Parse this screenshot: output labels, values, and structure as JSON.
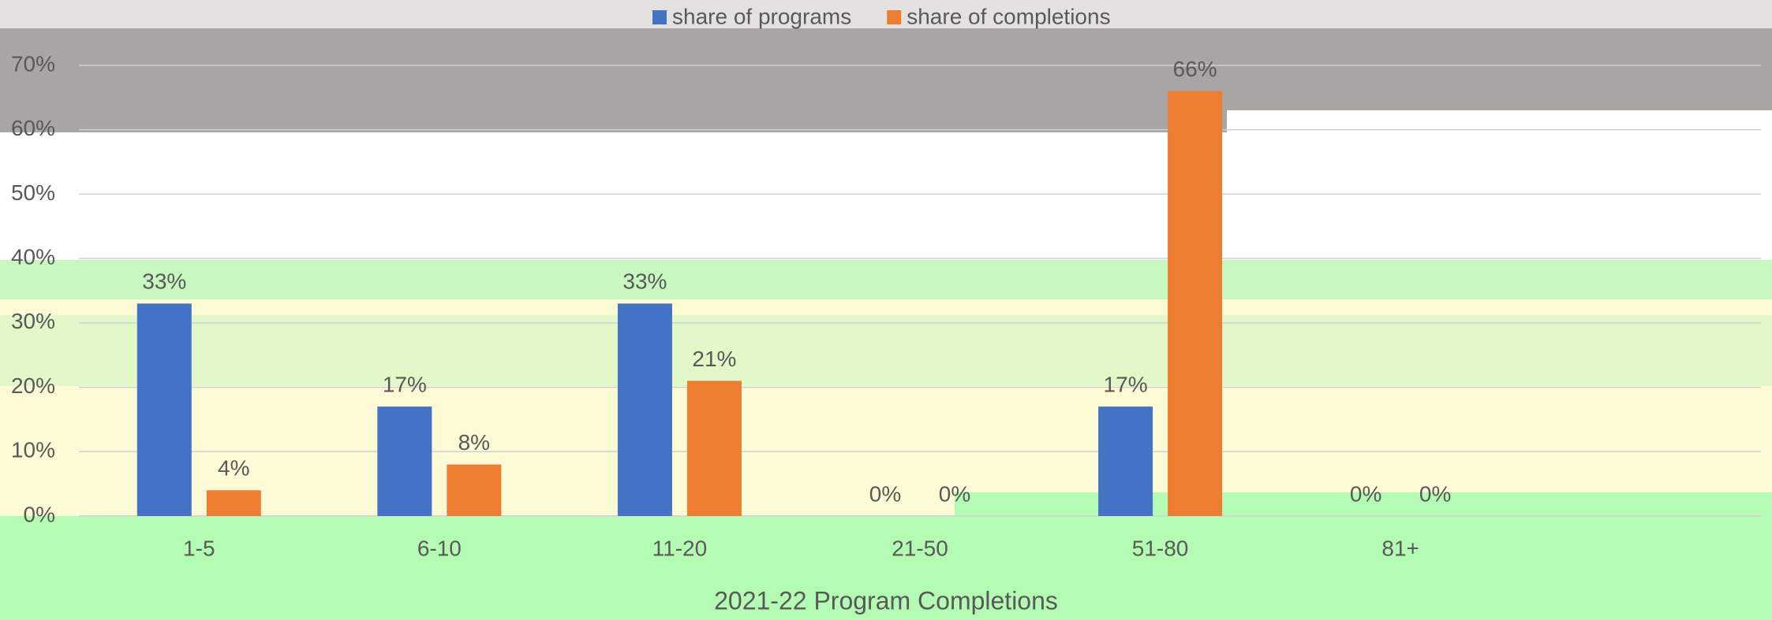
{
  "chart_data": {
    "type": "bar",
    "x_label": "2021-22  Program Completions",
    "categories": [
      "1-5",
      "6-10",
      "11-20",
      "21-50",
      "51-80",
      "81+",
      null
    ],
    "series": [
      {
        "name": "share of programs",
        "color": "#4472c4",
        "values": [
          33,
          17,
          33,
          0,
          17,
          0,
          null
        ],
        "value_labels": [
          "33%",
          "17%",
          "33%",
          "0%",
          "17%",
          "0%",
          null
        ]
      },
      {
        "name": "share of completions",
        "color": "#ed7d31",
        "values": [
          4,
          8,
          21,
          0,
          66,
          0,
          null
        ],
        "value_labels": [
          "4%",
          "8%",
          "21%",
          "0%",
          "66%",
          "0%",
          null
        ]
      }
    ],
    "ylim": [
      0,
      70
    ],
    "yticks": [
      {
        "value": 0,
        "label": "0%"
      },
      {
        "value": 10,
        "label": "10%"
      },
      {
        "value": 20,
        "label": "20%"
      },
      {
        "value": 30,
        "label": "30%"
      },
      {
        "value": 40,
        "label": "40%"
      },
      {
        "value": 50,
        "label": "50%"
      },
      {
        "value": 60,
        "label": "60%"
      },
      {
        "value": 70,
        "label": "70%"
      }
    ],
    "grid": true,
    "legend": "top"
  }
}
